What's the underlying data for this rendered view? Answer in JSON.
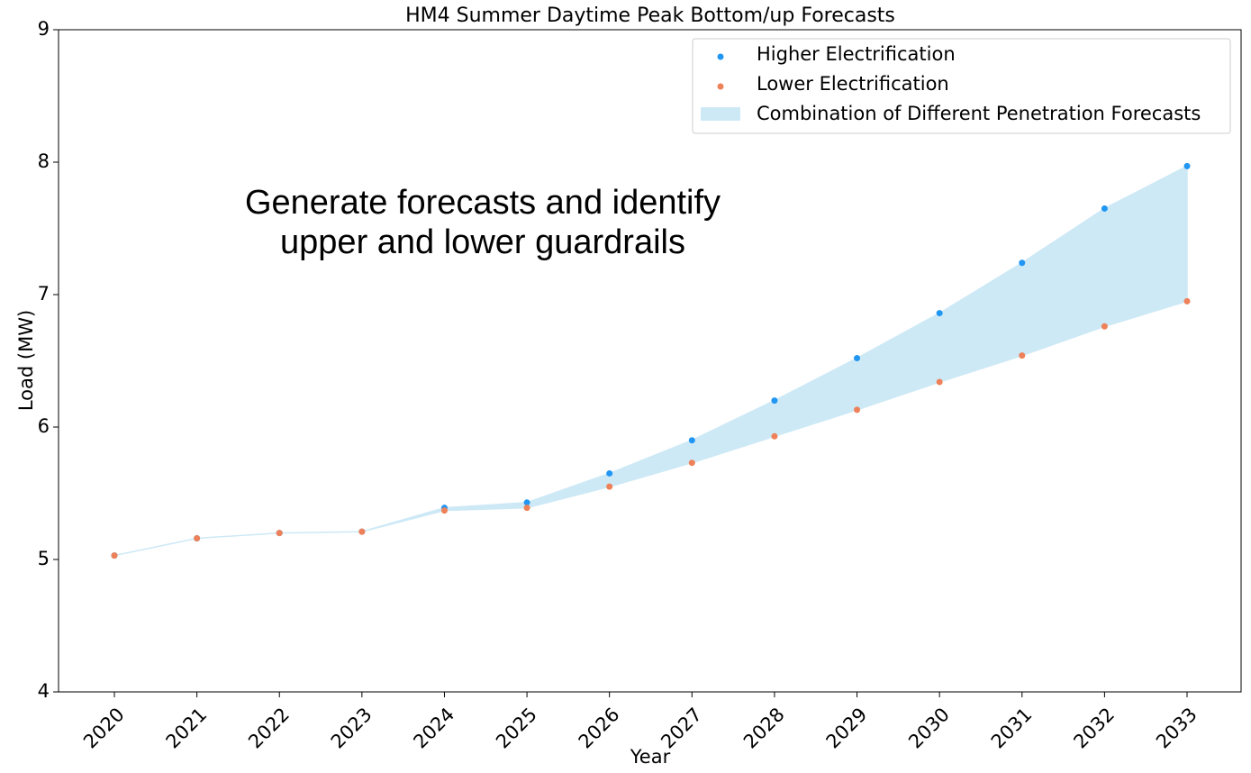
{
  "chart_data": {
    "type": "scatter_band",
    "title": "HM4 Summer Daytime Peak Bottom/up Forecasts",
    "xlabel": "Year",
    "ylabel": "Load (MW)",
    "annotation": [
      "Generate forecasts and identify",
      "upper and lower guardrails"
    ],
    "categories": [
      "2020",
      "2021",
      "2022",
      "2023",
      "2024",
      "2025",
      "2026",
      "2027",
      "2028",
      "2029",
      "2030",
      "2031",
      "2032",
      "2033"
    ],
    "series": [
      {
        "name": "Higher Electrification",
        "color": "#2196f3",
        "values": [
          5.03,
          5.16,
          5.2,
          5.21,
          5.39,
          5.43,
          5.65,
          5.9,
          6.2,
          6.52,
          6.86,
          7.24,
          7.65,
          7.97
        ]
      },
      {
        "name": "Lower Electrification",
        "color": "#ee8159",
        "values": [
          5.03,
          5.16,
          5.2,
          5.21,
          5.37,
          5.39,
          5.55,
          5.73,
          5.93,
          6.13,
          6.34,
          6.54,
          6.76,
          6.95
        ]
      }
    ],
    "band": {
      "name": "Combination of Different Penetration Forecasts",
      "color": "#cde9f6"
    },
    "ylim": [
      4,
      9
    ],
    "yticks": [
      4,
      5,
      6,
      7,
      8,
      9
    ],
    "legend": "upper right"
  }
}
